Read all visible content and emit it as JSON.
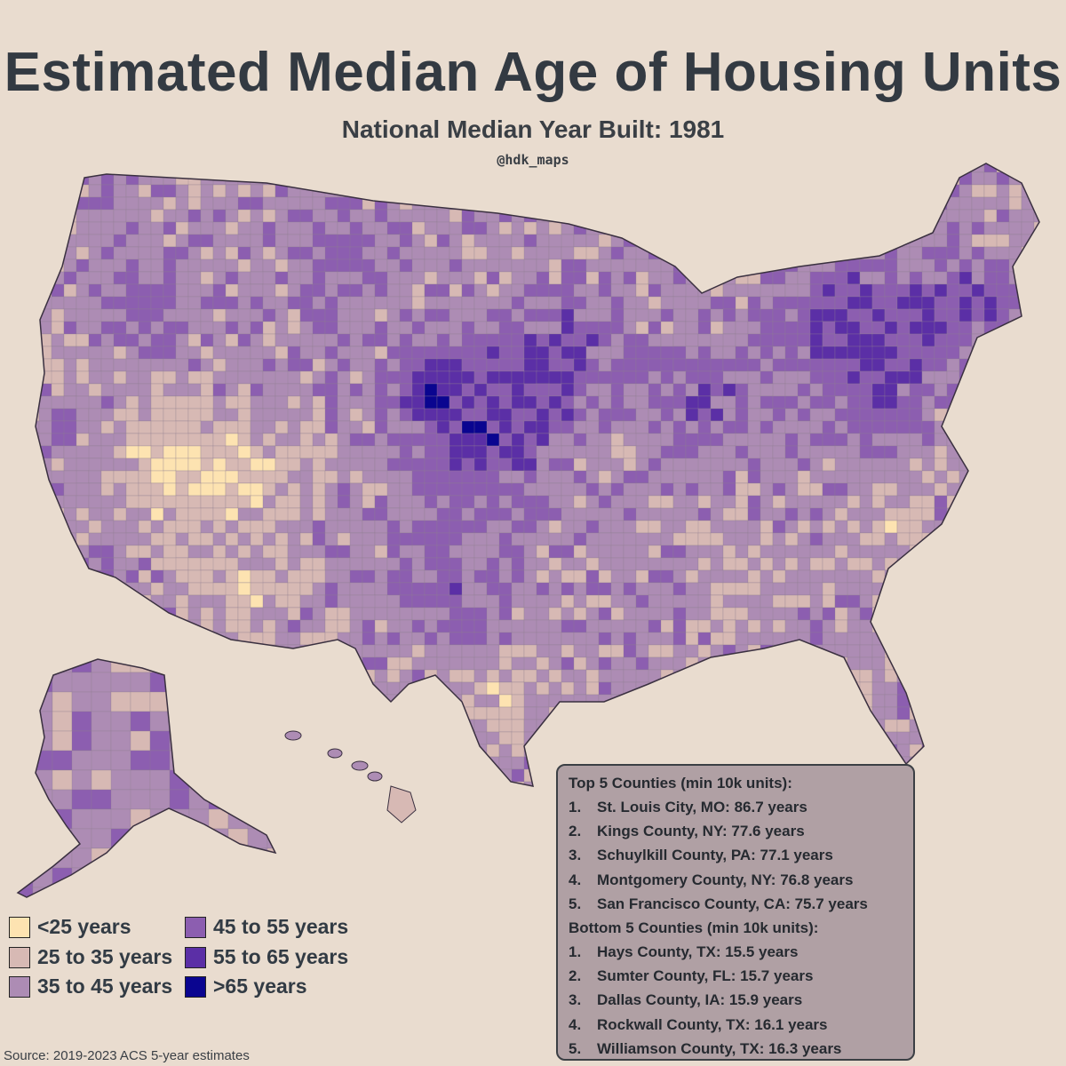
{
  "title": "Estimated Median Age of Housing Units",
  "subtitle": "National Median Year Built: 1981",
  "handle": "@hdk_maps",
  "source": "Source: 2019-2023 ACS 5-year estimates",
  "colors": {
    "background": "#e9dccf",
    "lt25": "#fde3b1",
    "25to35": "#d7b9b4",
    "35to45": "#ad8cb4",
    "45to55": "#8c5eb0",
    "55to65": "#5b2fa6",
    "gt65": "#0a0590",
    "border": "#3a3040"
  },
  "legend": [
    {
      "label": "<25 years",
      "color": "#fde3b1"
    },
    {
      "label": "25 to 35 years",
      "color": "#d7b9b4"
    },
    {
      "label": "35 to 45 years",
      "color": "#ad8cb4"
    },
    {
      "label": "45 to 55 years",
      "color": "#8c5eb0"
    },
    {
      "label": "55 to 65 years",
      "color": "#5b2fa6"
    },
    {
      "label": ">65 years",
      "color": "#0a0590"
    }
  ],
  "top5": {
    "heading": "Top 5 Counties (min 10k units):",
    "items": [
      {
        "rank": "1.",
        "text": "St. Louis City, MO: 86.7 years"
      },
      {
        "rank": "2.",
        "text": "Kings County, NY: 77.6 years"
      },
      {
        "rank": "3.",
        "text": "Schuylkill County, PA: 77.1 years"
      },
      {
        "rank": "4.",
        "text": "Montgomery County, NY: 76.8 years"
      },
      {
        "rank": "5.",
        "text": "San Francisco County, CA: 75.7 years"
      }
    ]
  },
  "bottom5": {
    "heading": "Bottom 5 Counties (min 10k units):",
    "items": [
      {
        "rank": "1.",
        "text": "Hays County, TX: 15.5 years"
      },
      {
        "rank": "2.",
        "text": "Sumter County, FL: 15.7 years"
      },
      {
        "rank": "3.",
        "text": "Dallas County, IA: 15.9 years"
      },
      {
        "rank": "4.",
        "text": "Rockwall County, TX: 16.1 years"
      },
      {
        "rank": "5.",
        "text": "Williamson County, TX: 16.3 years"
      }
    ]
  }
}
